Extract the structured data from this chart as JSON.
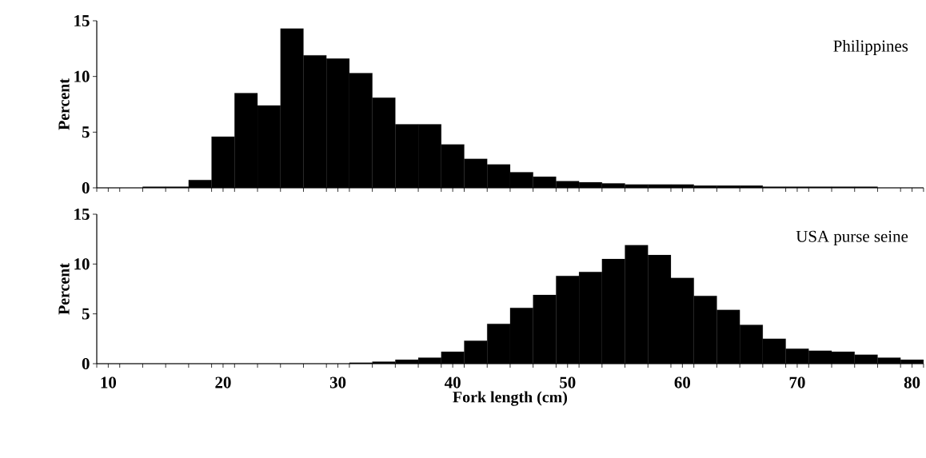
{
  "chart_data": [
    {
      "type": "histogram",
      "ylabel": "Percent",
      "annotations": [
        "Philippines"
      ],
      "color": "#000000",
      "tick_labels": "y",
      "bins": [
        9,
        11,
        13,
        15,
        17,
        19,
        21,
        23,
        25,
        27,
        29,
        31,
        33,
        35,
        37,
        39,
        41,
        43,
        45,
        47,
        49,
        51,
        53,
        55,
        57,
        59,
        61,
        63,
        65,
        67,
        69,
        71,
        73,
        75,
        77,
        79,
        81
      ],
      "values": [
        0,
        0,
        0.1,
        0.1,
        0.7,
        4.6,
        8.5,
        7.4,
        14.3,
        11.9,
        11.6,
        10.3,
        8.1,
        5.7,
        5.7,
        3.9,
        2.6,
        2.1,
        1.4,
        1.0,
        0.6,
        0.5,
        0.4,
        0.3,
        0.3,
        0.3,
        0.2,
        0.2,
        0.2,
        0.1,
        0.1,
        0.1,
        0.1,
        0.1,
        0,
        0
      ],
      "xlim": [
        9,
        81
      ],
      "ylim": [
        0,
        15
      ],
      "yticks": [
        0,
        5,
        10,
        15
      ],
      "xticks": [
        10,
        20,
        30,
        40,
        50,
        60,
        70,
        80,
        {
          "value": 9,
          "label": null
        },
        {
          "value": 11,
          "label": null
        },
        {
          "value": 13,
          "label": null
        },
        {
          "value": 15,
          "label": null
        },
        {
          "value": 17,
          "label": null
        },
        {
          "value": 19,
          "label": null
        },
        {
          "value": 21,
          "label": null
        },
        {
          "value": 23,
          "label": null
        },
        {
          "value": 25,
          "label": null
        },
        {
          "value": 27,
          "label": null
        },
        {
          "value": 29,
          "label": null
        },
        {
          "value": 31,
          "label": null
        },
        {
          "value": 33,
          "label": null
        },
        {
          "value": 35,
          "label": null
        },
        {
          "value": 37,
          "label": null
        },
        {
          "value": 39,
          "label": null
        },
        {
          "value": 41,
          "label": null
        },
        {
          "value": 43,
          "label": null
        },
        {
          "value": 45,
          "label": null
        },
        {
          "value": 47,
          "label": null
        },
        {
          "value": 49,
          "label": null
        },
        {
          "value": 51,
          "label": null
        },
        {
          "value": 53,
          "label": null
        },
        {
          "value": 55,
          "label": null
        },
        {
          "value": 57,
          "label": null
        },
        {
          "value": 59,
          "label": null
        },
        {
          "value": 61,
          "label": null
        },
        {
          "value": 63,
          "label": null
        },
        {
          "value": 65,
          "label": null
        },
        {
          "value": 67,
          "label": null
        },
        {
          "value": 69,
          "label": null
        },
        {
          "value": 71,
          "label": null
        },
        {
          "value": 73,
          "label": null
        },
        {
          "value": 75,
          "label": null
        },
        {
          "value": 77,
          "label": null
        },
        {
          "value": 79,
          "label": null
        },
        {
          "value": 81,
          "label": null
        }
      ]
    },
    {
      "type": "histogram",
      "ylabel": "Percent",
      "xlabel": "Fork length (cm)",
      "annotations": [
        "USA purse seine"
      ],
      "color": "#000000",
      "bins": [
        9,
        11,
        13,
        15,
        17,
        19,
        21,
        23,
        25,
        27,
        29,
        31,
        33,
        35,
        37,
        39,
        41,
        43,
        45,
        47,
        49,
        51,
        53,
        55,
        57,
        59,
        61,
        63,
        65,
        67,
        69,
        71,
        73,
        75,
        77,
        79,
        81
      ],
      "values": [
        0,
        0,
        0,
        0,
        0,
        0,
        0,
        0,
        0,
        0,
        0,
        0.1,
        0.2,
        0.4,
        0.6,
        1.2,
        2.3,
        4.0,
        5.6,
        6.9,
        8.8,
        9.2,
        10.5,
        11.9,
        10.9,
        8.6,
        6.8,
        5.4,
        3.9,
        2.5,
        1.5,
        1.3,
        1.2,
        0.9,
        0.6,
        0.4
      ],
      "xlim": [
        9,
        81
      ],
      "ylim": [
        0,
        15
      ],
      "yticks": [
        0,
        5,
        10,
        15
      ],
      "xticks": [
        10,
        20,
        30,
        40,
        50,
        60,
        70,
        80,
        {
          "value": 9,
          "label": null
        },
        {
          "value": 11,
          "label": null
        },
        {
          "value": 13,
          "label": null
        },
        {
          "value": 15,
          "label": null
        },
        {
          "value": 17,
          "label": null
        },
        {
          "value": 19,
          "label": null
        },
        {
          "value": 21,
          "label": null
        },
        {
          "value": 23,
          "label": null
        },
        {
          "value": 25,
          "label": null
        },
        {
          "value": 27,
          "label": null
        },
        {
          "value": 29,
          "label": null
        },
        {
          "value": 31,
          "label": null
        },
        {
          "value": 33,
          "label": null
        },
        {
          "value": 35,
          "label": null
        },
        {
          "value": 37,
          "label": null
        },
        {
          "value": 39,
          "label": null
        },
        {
          "value": 41,
          "label": null
        },
        {
          "value": 43,
          "label": null
        },
        {
          "value": 45,
          "label": null
        },
        {
          "value": 47,
          "label": null
        },
        {
          "value": 49,
          "label": null
        },
        {
          "value": 51,
          "label": null
        },
        {
          "value": 53,
          "label": null
        },
        {
          "value": 55,
          "label": null
        },
        {
          "value": 57,
          "label": null
        },
        {
          "value": 59,
          "label": null
        },
        {
          "value": 61,
          "label": null
        },
        {
          "value": 63,
          "label": null
        },
        {
          "value": 65,
          "label": null
        },
        {
          "value": 67,
          "label": null
        },
        {
          "value": 69,
          "label": null
        },
        {
          "value": 71,
          "label": null
        },
        {
          "value": 73,
          "label": null
        },
        {
          "value": 75,
          "label": null
        },
        {
          "value": 77,
          "label": null
        },
        {
          "value": 79,
          "label": null
        },
        {
          "value": 81,
          "label": null
        }
      ]
    }
  ]
}
